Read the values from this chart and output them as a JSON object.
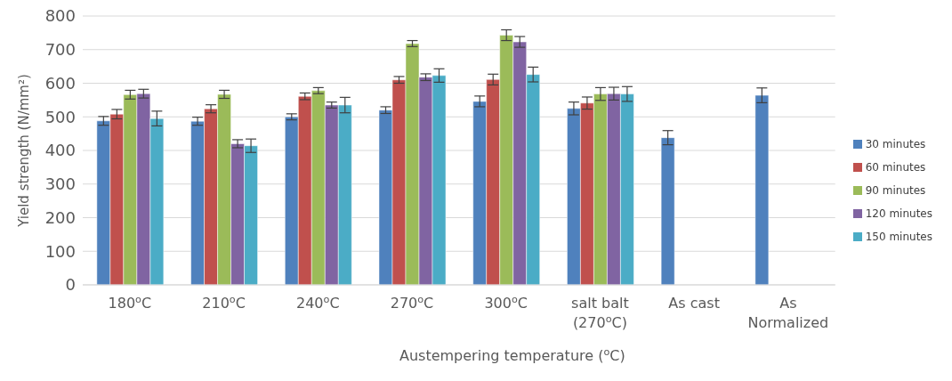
{
  "chart_data": {
    "type": "bar",
    "xlabel": "Austempering temperature ($^{o}$C)",
    "ylabel": "Yield strength (N/mm²)",
    "categories": [
      "180$^{o}$C",
      "210$^{o}$C",
      "240$^{o}$C",
      "270$^{o}$C",
      "300$^{o}$C",
      "salt balt (270$^{o}$C)",
      "As cast",
      "As Normalized"
    ],
    "series": [
      {
        "name": "30 minutes",
        "color": "#4f81bd",
        "values": [
          488,
          487,
          500,
          520,
          546,
          525,
          438,
          564
        ],
        "errors": [
          13,
          12,
          9,
          10,
          16,
          19,
          21,
          22
        ]
      },
      {
        "name": "60 minutes",
        "color": "#c0504d",
        "values": [
          508,
          524,
          561,
          610,
          611,
          541,
          null,
          null
        ],
        "errors": [
          14,
          12,
          10,
          10,
          16,
          18,
          null,
          null
        ]
      },
      {
        "name": "90 minutes",
        "color": "#9bbb59",
        "values": [
          566,
          567,
          578,
          718,
          743,
          568,
          null,
          null
        ],
        "errors": [
          13,
          12,
          9,
          9,
          16,
          19,
          null,
          null
        ]
      },
      {
        "name": "120 minutes",
        "color": "#8064a2",
        "values": [
          569,
          420,
          535,
          618,
          723,
          569,
          null,
          null
        ],
        "errors": [
          13,
          12,
          9,
          10,
          16,
          19,
          null,
          null
        ]
      },
      {
        "name": "150 minutes",
        "color": "#4bacc6",
        "values": [
          495,
          414,
          535,
          623,
          626,
          568,
          null,
          null
        ],
        "errors": [
          22,
          20,
          23,
          20,
          22,
          22,
          null,
          null
        ]
      }
    ],
    "ylim": [
      0,
      800
    ],
    "yticks": [
      0,
      100,
      200,
      300,
      400,
      500,
      600,
      700,
      800
    ],
    "grid": "y",
    "legend": "right"
  }
}
